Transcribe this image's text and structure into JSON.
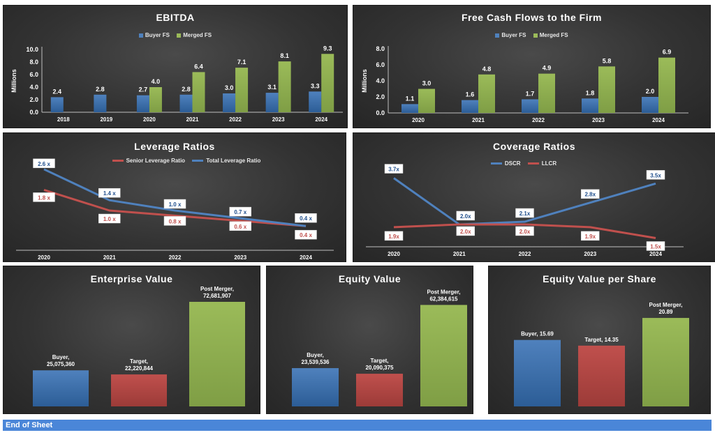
{
  "footer": {
    "label": "End of Sheet"
  },
  "colors": {
    "blue": "#4f81bd",
    "green": "#9bbb59",
    "red": "#c0504d"
  },
  "chart_data": [
    {
      "id": "ebitda",
      "type": "bar",
      "title": "EBITDA",
      "ylabel": "Millions",
      "ylim": [
        0,
        10
      ],
      "yticks": [
        "0.0",
        "2.0",
        "4.0",
        "6.0",
        "8.0",
        "10.0"
      ],
      "categories": [
        "2018",
        "2019",
        "2020",
        "2021",
        "2022",
        "2023",
        "2024"
      ],
      "legend": "top",
      "series": [
        {
          "name": "Buyer FS",
          "color": "#4f81bd",
          "values": [
            2.4,
            2.8,
            2.7,
            2.8,
            3.0,
            3.1,
            3.3
          ],
          "labels": [
            "2.4",
            "2.8",
            "2.7",
            "2.8",
            "3.0",
            "3.1",
            "3.3"
          ]
        },
        {
          "name": "Merged FS",
          "color": "#9bbb59",
          "values": [
            null,
            null,
            4.0,
            6.4,
            7.1,
            8.1,
            9.3
          ],
          "labels": [
            "",
            "",
            "4.0",
            "6.4",
            "7.1",
            "8.1",
            "9.3"
          ]
        }
      ]
    },
    {
      "id": "fcff",
      "type": "bar",
      "title": "Free Cash Flows to the Firm",
      "ylabel": "Millions",
      "ylim": [
        0,
        8
      ],
      "yticks": [
        "0.0",
        "2.0",
        "4.0",
        "6.0",
        "8.0"
      ],
      "categories": [
        "2020",
        "2021",
        "2022",
        "2023",
        "2024"
      ],
      "legend": "top",
      "series": [
        {
          "name": "Buyer FS",
          "color": "#4f81bd",
          "values": [
            1.1,
            1.6,
            1.7,
            1.8,
            2.0
          ],
          "labels": [
            "1.1",
            "1.6",
            "1.7",
            "1.8",
            "2.0"
          ]
        },
        {
          "name": "Merged FS",
          "color": "#9bbb59",
          "values": [
            3.0,
            4.8,
            4.9,
            5.8,
            6.9
          ],
          "labels": [
            "3.0",
            "4.8",
            "4.9",
            "5.8",
            "6.9"
          ]
        }
      ]
    },
    {
      "id": "leverage",
      "type": "line",
      "title": "Leverage Ratios",
      "ylim": [
        0,
        3
      ],
      "categories": [
        "2020",
        "2021",
        "2022",
        "2023",
        "2024"
      ],
      "legend": "top",
      "series": [
        {
          "name": "Senior Leverage Ratio",
          "color": "#c0504d",
          "values": [
            1.8,
            1.0,
            0.8,
            0.6,
            0.4
          ],
          "labels": [
            "1.8 x",
            "1.0 x",
            "0.8 x",
            "0.6 x",
            "0.4 x"
          ]
        },
        {
          "name": "Total Leverage Ratio",
          "color": "#4f81bd",
          "values": [
            2.6,
            1.4,
            1.0,
            0.7,
            0.4
          ],
          "labels": [
            "2.6 x",
            "1.4 x",
            "1.0 x",
            "0.7 x",
            "0.4 x"
          ]
        }
      ]
    },
    {
      "id": "coverage",
      "type": "line",
      "title": "Coverage Ratios",
      "ylim": [
        1,
        4.2
      ],
      "categories": [
        "2020",
        "2021",
        "2022",
        "2023",
        "2024"
      ],
      "legend": "top",
      "series": [
        {
          "name": "DSCR",
          "color": "#4f81bd",
          "values": [
            3.7,
            2.0,
            2.1,
            2.8,
            3.5
          ],
          "labels": [
            "3.7x",
            "2.0x",
            "2.1x",
            "2.8x",
            "3.5x"
          ]
        },
        {
          "name": "LLCR",
          "color": "#c0504d",
          "values": [
            1.9,
            2.0,
            2.0,
            1.9,
            1.5
          ],
          "labels": [
            "1.9x",
            "2.0x",
            "2.0x",
            "1.9x",
            "1.5x"
          ]
        }
      ]
    },
    {
      "id": "ev",
      "type": "bar",
      "title": "Enterprise Value",
      "ylim": [
        0,
        78000000
      ],
      "categories": [
        "Buyer",
        "Target",
        "Post Merger"
      ],
      "values": [
        25075360,
        22220844,
        72681907
      ],
      "colors": [
        "#4f81bd",
        "#c0504d",
        "#9bbb59"
      ],
      "labels": [
        [
          "Buyer,",
          "25,075,360"
        ],
        [
          "Target,",
          "22,220,844"
        ],
        [
          "Post Merger,",
          "72,681,907"
        ]
      ]
    },
    {
      "id": "equity",
      "type": "bar",
      "title": "Equity Value",
      "ylim": [
        0,
        69000000
      ],
      "categories": [
        "Buyer",
        "Target",
        "Post Merger"
      ],
      "values": [
        23539536,
        20090375,
        62384615
      ],
      "colors": [
        "#4f81bd",
        "#c0504d",
        "#9bbb59"
      ],
      "labels": [
        [
          "Buyer,",
          "23,539,536"
        ],
        [
          "Target,",
          "20,090,375"
        ],
        [
          "Post Merger,",
          "62,384,615"
        ]
      ]
    },
    {
      "id": "evps",
      "type": "bar",
      "title": "Equity Value per Share",
      "ylim": [
        0,
        26.5
      ],
      "categories": [
        "Buyer",
        "Target",
        "Post Merger"
      ],
      "values": [
        15.69,
        14.35,
        20.89
      ],
      "colors": [
        "#4f81bd",
        "#c0504d",
        "#9bbb59"
      ],
      "labels": [
        [
          "Buyer, 15.69"
        ],
        [
          "Target, 14.35"
        ],
        [
          "Post Merger,",
          "20.89"
        ]
      ]
    }
  ]
}
